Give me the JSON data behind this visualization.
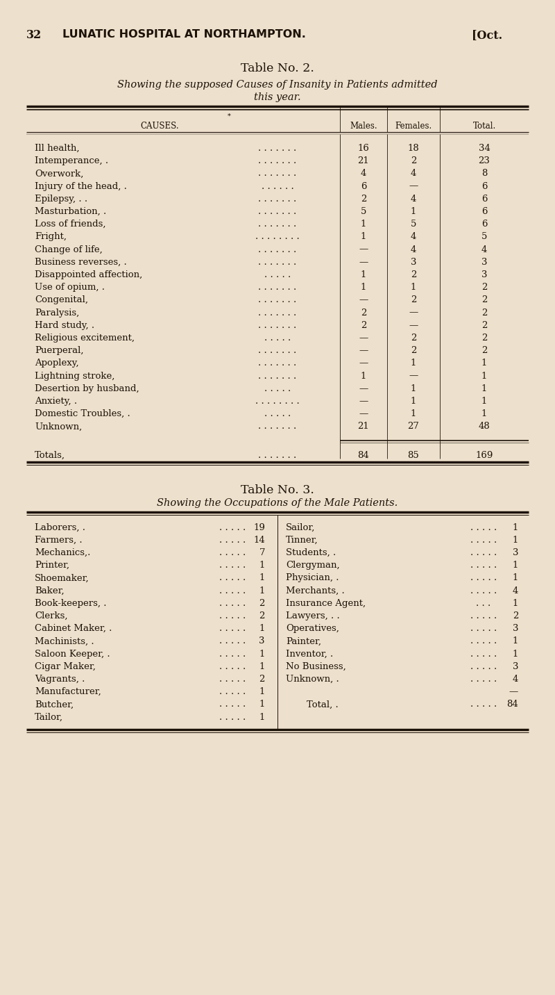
{
  "bg_color": "#ede0cc",
  "page_header_num": "32",
  "page_header_title": "LUNATIC HOSPITAL AT NORTHAMPTON.",
  "page_header_date": "[Oct.",
  "table2_title": "Table No. 2.",
  "table2_subtitle1": "Showing the supposed Causes of Insanity in Patients admitted",
  "table2_subtitle2": "this year.",
  "col_header_cause": "CAUSES.",
  "col_header_males": "Males.",
  "col_header_females": "Females.",
  "col_header_total": "Total.",
  "table2_rows": [
    [
      "Ill health,",
      ". . . . . . .",
      "16",
      "18",
      "34"
    ],
    [
      "Intemperance, .",
      ". . . . . . .",
      "21",
      "2",
      "23"
    ],
    [
      "Overwork,",
      ". . . . . . .",
      "4",
      "4",
      "8"
    ],
    [
      "Injury of the head, .",
      ". . . . . .",
      "6",
      "—",
      "6"
    ],
    [
      "Epilepsy, . .",
      ". . . . . . .",
      "2",
      "4",
      "6"
    ],
    [
      "Masturbation, .",
      ". . . . . . .",
      "5",
      "1",
      "6"
    ],
    [
      "Loss of friends,",
      ". . . . . . .",
      "1",
      "5",
      "6"
    ],
    [
      "Fright,",
      ". . . . . . . .",
      "1",
      "4",
      "5"
    ],
    [
      "Change of life,",
      ". . . . . . .",
      "—",
      "4",
      "4"
    ],
    [
      "Business reverses, .",
      ". . . . . . .",
      "—",
      "3",
      "3"
    ],
    [
      "Disappointed affection,",
      ". . . . .",
      "1",
      "2",
      "3"
    ],
    [
      "Use of opium, .",
      ". . . . . . .",
      "1",
      "1",
      "2"
    ],
    [
      "Congenital,",
      ". . . . . . .",
      "—",
      "2",
      "2"
    ],
    [
      "Paralysis,",
      ". . . . . . .",
      "2",
      "—",
      "2"
    ],
    [
      "Hard study, .",
      ". . . . . . .",
      "2",
      "—",
      "2"
    ],
    [
      "Religious excitement,",
      ". . . . .",
      "—",
      "2",
      "2"
    ],
    [
      "Puerperal,",
      ". . . . . . .",
      "—",
      "2",
      "2"
    ],
    [
      "Apoplexy,",
      ". . . . . . .",
      "—",
      "1",
      "1"
    ],
    [
      "Lightning stroke,",
      ". . . . . . .",
      "1",
      "—",
      "1"
    ],
    [
      "Desertion by husband,",
      ". . . . .",
      "—",
      "1",
      "1"
    ],
    [
      "Anxiety, .",
      ". . . . . . . .",
      "—",
      "1",
      "1"
    ],
    [
      "Domestic Troubles, .",
      ". . . . .",
      "—",
      "1",
      "1"
    ],
    [
      "Unknown,",
      ". . . . . . .",
      "21",
      "27",
      "48"
    ]
  ],
  "totals_label": "Totals,",
  "totals_dots": ". . . . . . .",
  "totals_m": "84",
  "totals_f": "85",
  "totals_t": "169",
  "table3_title": "Table No. 3.",
  "table3_subtitle": "Showing the Occupations of the Male Patients.",
  "table3_left": [
    [
      "Laborers, .",
      ". . . . .",
      "19"
    ],
    [
      "Farmers, .",
      ". . . . .",
      "14"
    ],
    [
      "Mechanics,.",
      ". . . . .",
      "7"
    ],
    [
      "Printer,",
      ". . . . .",
      "1"
    ],
    [
      "Shoemaker,",
      ". . . . .",
      "1"
    ],
    [
      "Baker,",
      ". . . . .",
      "1"
    ],
    [
      "Book-keepers, .",
      ". . . . .",
      "2"
    ],
    [
      "Clerks,",
      ". . . . .",
      "2"
    ],
    [
      "Cabinet Maker, .",
      ". . . . .",
      "1"
    ],
    [
      "Machinists, .",
      ". . . . .",
      "3"
    ],
    [
      "Saloon Keeper, .",
      ". . . . .",
      "1"
    ],
    [
      "Cigar Maker,",
      ". . . . .",
      "1"
    ],
    [
      "Vagrants, .",
      ". . . . .",
      "2"
    ],
    [
      "Manufacturer,",
      ". . . . .",
      "1"
    ],
    [
      "Butcher,",
      ". . . . .",
      "1"
    ],
    [
      "Tailor,",
      ". . . . .",
      "1"
    ]
  ],
  "table3_right": [
    [
      "Sailor,",
      ". . . . .",
      "1"
    ],
    [
      "Tinner,",
      ". . . . .",
      "1"
    ],
    [
      "Students, .",
      ". . . . .",
      "3"
    ],
    [
      "Clergyman,",
      ". . . . .",
      "1"
    ],
    [
      "Physician, .",
      ". . . . .",
      "1"
    ],
    [
      "Merchants, .",
      ". . . . .",
      "4"
    ],
    [
      "Insurance Agent,",
      ". . .",
      "1"
    ],
    [
      "Lawyers, . .",
      ". . . . .",
      "2"
    ],
    [
      "Operatives,",
      ". . . . .",
      "3"
    ],
    [
      "Painter,",
      ". . . . .",
      "1"
    ],
    [
      "Inventor, .",
      ". . . . .",
      "1"
    ],
    [
      "No Business,",
      ". . . . .",
      "3"
    ],
    [
      "Unknown, .",
      ". . . . .",
      "4"
    ],
    [
      "",
      "",
      "—"
    ],
    [
      "Total, .",
      ". . . . .",
      "84"
    ]
  ],
  "font_color": "#1c1208",
  "line_color": "#1c1208",
  "body_fs": 9.5,
  "header_fs": 11.5,
  "title_fs": 12.5,
  "subtitle_fs": 10.5
}
